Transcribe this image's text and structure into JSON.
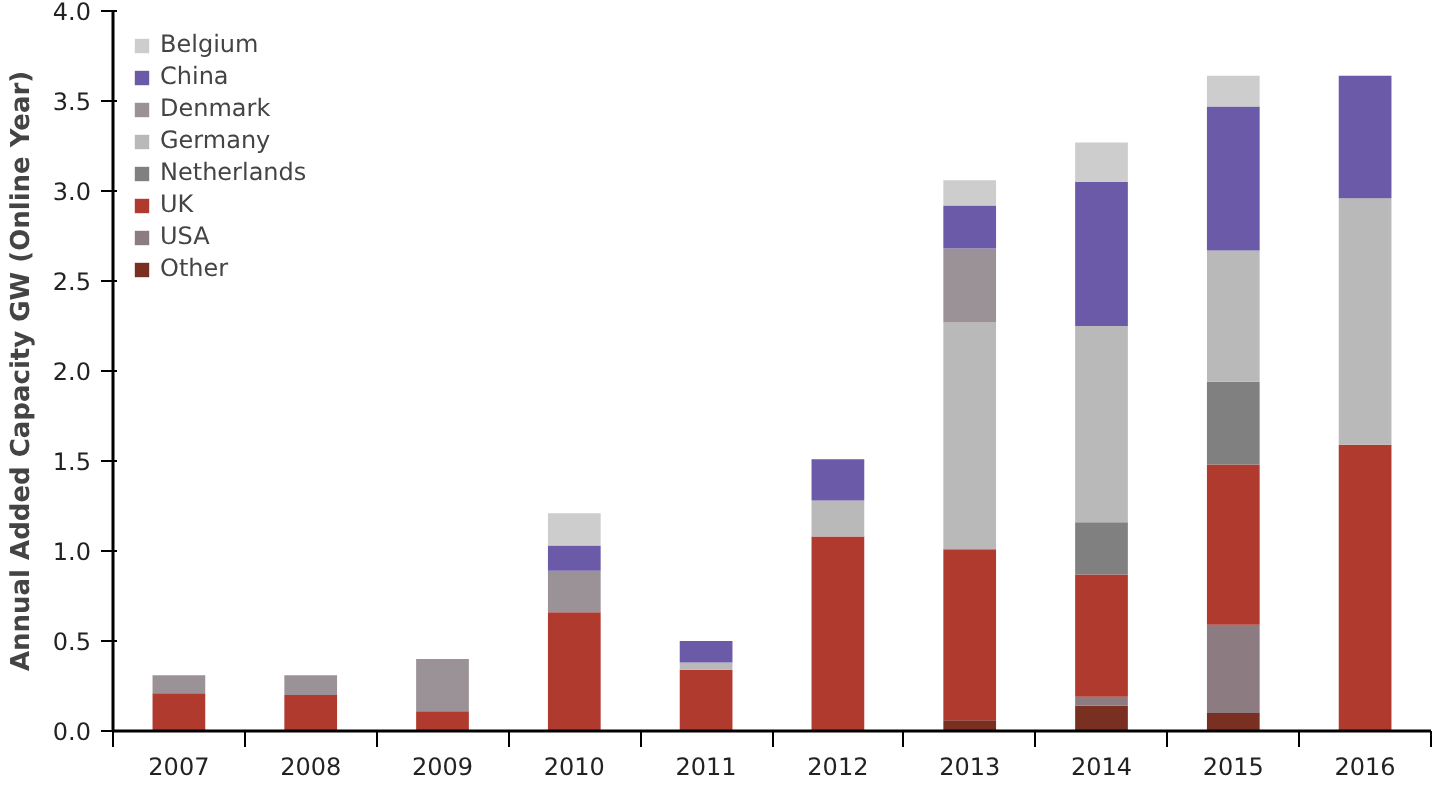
{
  "chart_data": {
    "type": "bar",
    "stacked": true,
    "ylabel": "Annual Added Capacity GW (Online Year)",
    "categories": [
      "2007",
      "2008",
      "2009",
      "2010",
      "2011",
      "2012",
      "2013",
      "2014",
      "2015",
      "2016"
    ],
    "ylim": [
      0,
      4.0
    ],
    "yticks": [
      {
        "value": 0,
        "label": "0.0"
      },
      {
        "value": 0.5,
        "label": "0.5"
      },
      {
        "value": 1,
        "label": "1.0"
      },
      {
        "value": 1.5,
        "label": "1.5"
      },
      {
        "value": 2,
        "label": "2.0"
      },
      {
        "value": 2.5,
        "label": "2.5"
      },
      {
        "value": 3,
        "label": "3.0"
      },
      {
        "value": 3.5,
        "label": "3.5"
      },
      {
        "value": 4,
        "label": "4.0"
      }
    ],
    "grid": false,
    "legend": "top left",
    "series": [
      {
        "name": "Other",
        "color": "#7a3020",
        "values": [
          null,
          null,
          null,
          null,
          null,
          null,
          0.06,
          0.14,
          0.1,
          null
        ]
      },
      {
        "name": "USA",
        "color": "#8c7c82",
        "values": [
          null,
          null,
          null,
          null,
          null,
          null,
          null,
          0.05,
          0.49,
          null
        ]
      },
      {
        "name": "UK",
        "color": "#b03a2e",
        "values": [
          0.21,
          0.2,
          0.11,
          0.66,
          0.34,
          1.08,
          0.95,
          0.68,
          0.89,
          1.59
        ]
      },
      {
        "name": "Netherlands",
        "color": "#808080",
        "values": [
          null,
          null,
          null,
          null,
          null,
          null,
          null,
          0.29,
          0.46,
          null
        ]
      },
      {
        "name": "Germany",
        "color": "#b9b9b9",
        "values": [
          null,
          null,
          null,
          null,
          0.04,
          0.2,
          1.26,
          1.09,
          0.73,
          1.37
        ]
      },
      {
        "name": "Denmark",
        "color": "#9a9296",
        "values": [
          0.1,
          0.11,
          0.29,
          0.23,
          null,
          null,
          0.41,
          null,
          null,
          null
        ]
      },
      {
        "name": "China",
        "color": "#6a5aa8",
        "values": [
          null,
          null,
          null,
          0.14,
          0.12,
          0.23,
          0.24,
          0.8,
          0.8,
          0.68
        ]
      },
      {
        "name": "Belgium",
        "color": "#cdcdcd",
        "values": [
          null,
          null,
          null,
          0.18,
          null,
          null,
          0.14,
          0.22,
          0.17,
          null
        ]
      }
    ]
  }
}
